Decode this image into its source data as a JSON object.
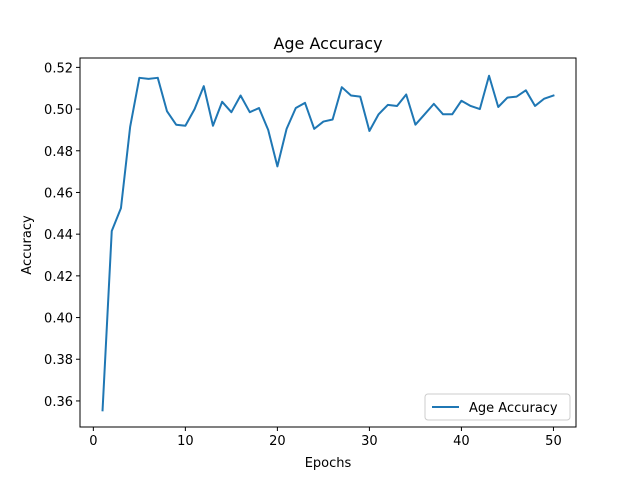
{
  "chart_data": {
    "type": "line",
    "title": "Age Accuracy",
    "xlabel": "Epochs",
    "ylabel": "Accuracy",
    "xlim": [
      -1.45,
      52.45
    ],
    "ylim": [
      0.3475,
      0.5245
    ],
    "x_ticks": [
      0,
      10,
      20,
      30,
      40,
      50
    ],
    "y_ticks": [
      0.36,
      0.38,
      0.4,
      0.42,
      0.44,
      0.46,
      0.48,
      0.5,
      0.52
    ],
    "y_tick_labels": [
      "0.36",
      "0.38",
      "0.40",
      "0.42",
      "0.44",
      "0.46",
      "0.48",
      "0.50",
      "0.52"
    ],
    "grid": false,
    "legend_position": "lower-right",
    "series": [
      {
        "name": "Age Accuracy",
        "color": "#1f77b4",
        "x": [
          1,
          2,
          3,
          4,
          5,
          6,
          7,
          8,
          9,
          10,
          11,
          12,
          13,
          14,
          15,
          16,
          17,
          18,
          19,
          20,
          21,
          22,
          23,
          24,
          25,
          26,
          27,
          28,
          29,
          30,
          31,
          32,
          33,
          34,
          35,
          36,
          37,
          38,
          39,
          40,
          41,
          42,
          43,
          44,
          45,
          46,
          47,
          48,
          49,
          50
        ],
        "y": [
          0.3555,
          0.4415,
          0.4525,
          0.4915,
          0.515,
          0.5145,
          0.515,
          0.499,
          0.4925,
          0.492,
          0.5,
          0.511,
          0.492,
          0.5035,
          0.4985,
          0.5065,
          0.4985,
          0.5005,
          0.49,
          0.4725,
          0.4905,
          0.5005,
          0.503,
          0.4905,
          0.494,
          0.495,
          0.5105,
          0.5065,
          0.506,
          0.4895,
          0.4975,
          0.502,
          0.5015,
          0.507,
          0.4925,
          0.4975,
          0.5025,
          0.4975,
          0.4975,
          0.504,
          0.5015,
          0.5,
          0.516,
          0.501,
          0.5055,
          0.506,
          0.509,
          0.5015,
          0.505,
          0.5065
        ]
      }
    ]
  }
}
